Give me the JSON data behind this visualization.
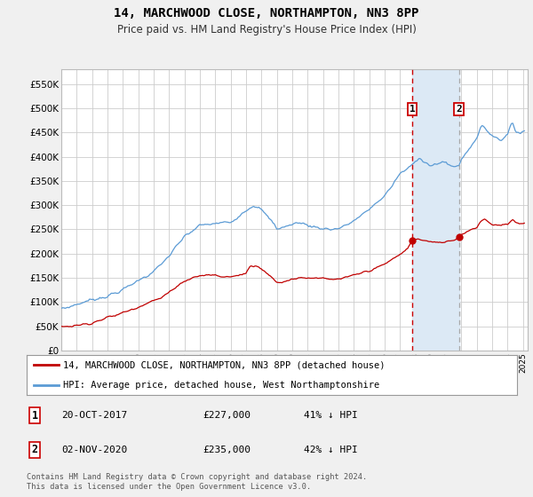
{
  "title": "14, MARCHWOOD CLOSE, NORTHAMPTON, NN3 8PP",
  "subtitle": "Price paid vs. HM Land Registry's House Price Index (HPI)",
  "ylabel_ticks": [
    "£0",
    "£50K",
    "£100K",
    "£150K",
    "£200K",
    "£250K",
    "£300K",
    "£350K",
    "£400K",
    "£450K",
    "£500K",
    "£550K"
  ],
  "ytick_vals": [
    0,
    50000,
    100000,
    150000,
    200000,
    250000,
    300000,
    350000,
    400000,
    450000,
    500000,
    550000
  ],
  "ylim": [
    0,
    580000
  ],
  "hpi_color": "#5b9bd5",
  "price_color": "#c00000",
  "vline1_color": "#cc0000",
  "vline2_color": "#aaaaaa",
  "shade_color": "#dce9f5",
  "legend_label_red": "14, MARCHWOOD CLOSE, NORTHAMPTON, NN3 8PP (detached house)",
  "legend_label_blue": "HPI: Average price, detached house, West Northamptonshire",
  "transaction1_label": "1",
  "transaction1_date": "20-OCT-2017",
  "transaction1_price": "£227,000",
  "transaction1_hpi": "41% ↓ HPI",
  "transaction2_label": "2",
  "transaction2_date": "02-NOV-2020",
  "transaction2_price": "£235,000",
  "transaction2_hpi": "42% ↓ HPI",
  "footer": "Contains HM Land Registry data © Crown copyright and database right 2024.\nThis data is licensed under the Open Government Licence v3.0.",
  "background_color": "#f0f0f0",
  "plot_background": "#ffffff",
  "grid_color": "#cccccc",
  "t1_price": 227000,
  "t2_price": 235000,
  "t1_year": 2017.8,
  "t2_year": 2020.84
}
